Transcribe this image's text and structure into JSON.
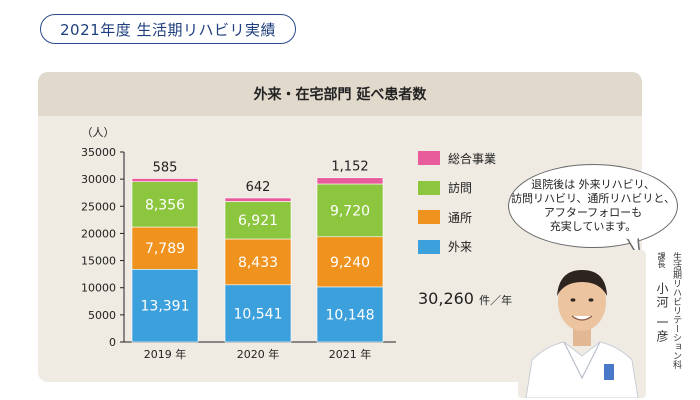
{
  "header": {
    "title": "2021年度 生活期リハビリ実績"
  },
  "panel": {
    "title": "外来・在宅部門 延べ患者数"
  },
  "chart_data": {
    "type": "bar",
    "stacked": true,
    "ylabel": "（人）",
    "ylim": [
      0,
      35000
    ],
    "yticks": [
      0,
      5000,
      10000,
      15000,
      20000,
      25000,
      30000,
      35000
    ],
    "categories": [
      "2019 年",
      "2020 年",
      "2021 年"
    ],
    "series": [
      {
        "name": "外来",
        "color": "#3ca0dc",
        "values": [
          13391,
          10541,
          10148
        ],
        "labels": [
          "13,391",
          "10,541",
          "10,148"
        ]
      },
      {
        "name": "通所",
        "color": "#f0921e",
        "values": [
          7789,
          8433,
          9240
        ],
        "labels": [
          "7,789",
          "8,433",
          "9,240"
        ]
      },
      {
        "name": "訪問",
        "color": "#8cc63f",
        "values": [
          8356,
          6921,
          9720
        ],
        "labels": [
          "8,356",
          "6,921",
          "9,720"
        ]
      },
      {
        "name": "総合事業",
        "color": "#e85c9c",
        "values": [
          585,
          642,
          1152
        ],
        "labels": [
          "585",
          "642",
          "1,152"
        ]
      }
    ],
    "legend": {
      "position": "right",
      "order": [
        "総合事業",
        "訪問",
        "通所",
        "外来"
      ]
    },
    "grid": false
  },
  "total": {
    "value": "30,260",
    "unit": "件／年"
  },
  "speech_bubble": {
    "lines": [
      "退院後は 外来リハビリ、",
      "訪問リハビリ、通所リハビリと、",
      "アフターフォローも",
      "充実しています。"
    ]
  },
  "staff": {
    "department": "生活期リハビリテーション科",
    "role": "課長",
    "name": "小河 一彦"
  }
}
